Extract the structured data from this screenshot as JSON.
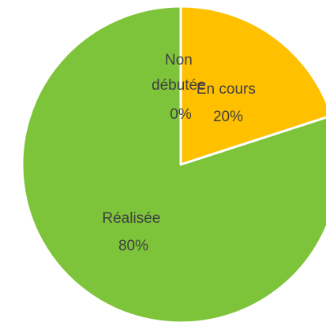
{
  "chart_data": {
    "type": "pie",
    "title": "",
    "start_angle_deg": 0,
    "direction": "clockwise",
    "slices": [
      {
        "label": "En cours",
        "value": 20,
        "percent_label": "20%",
        "color": "#FFC000"
      },
      {
        "label": "Réalisée",
        "value": 80,
        "percent_label": "80%",
        "color": "#7DC43A"
      },
      {
        "label": "Non débutée",
        "label_lines": [
          "Non",
          "débutée"
        ],
        "value": 0,
        "percent_label": "0%",
        "color": "#A5A5A5"
      }
    ]
  }
}
